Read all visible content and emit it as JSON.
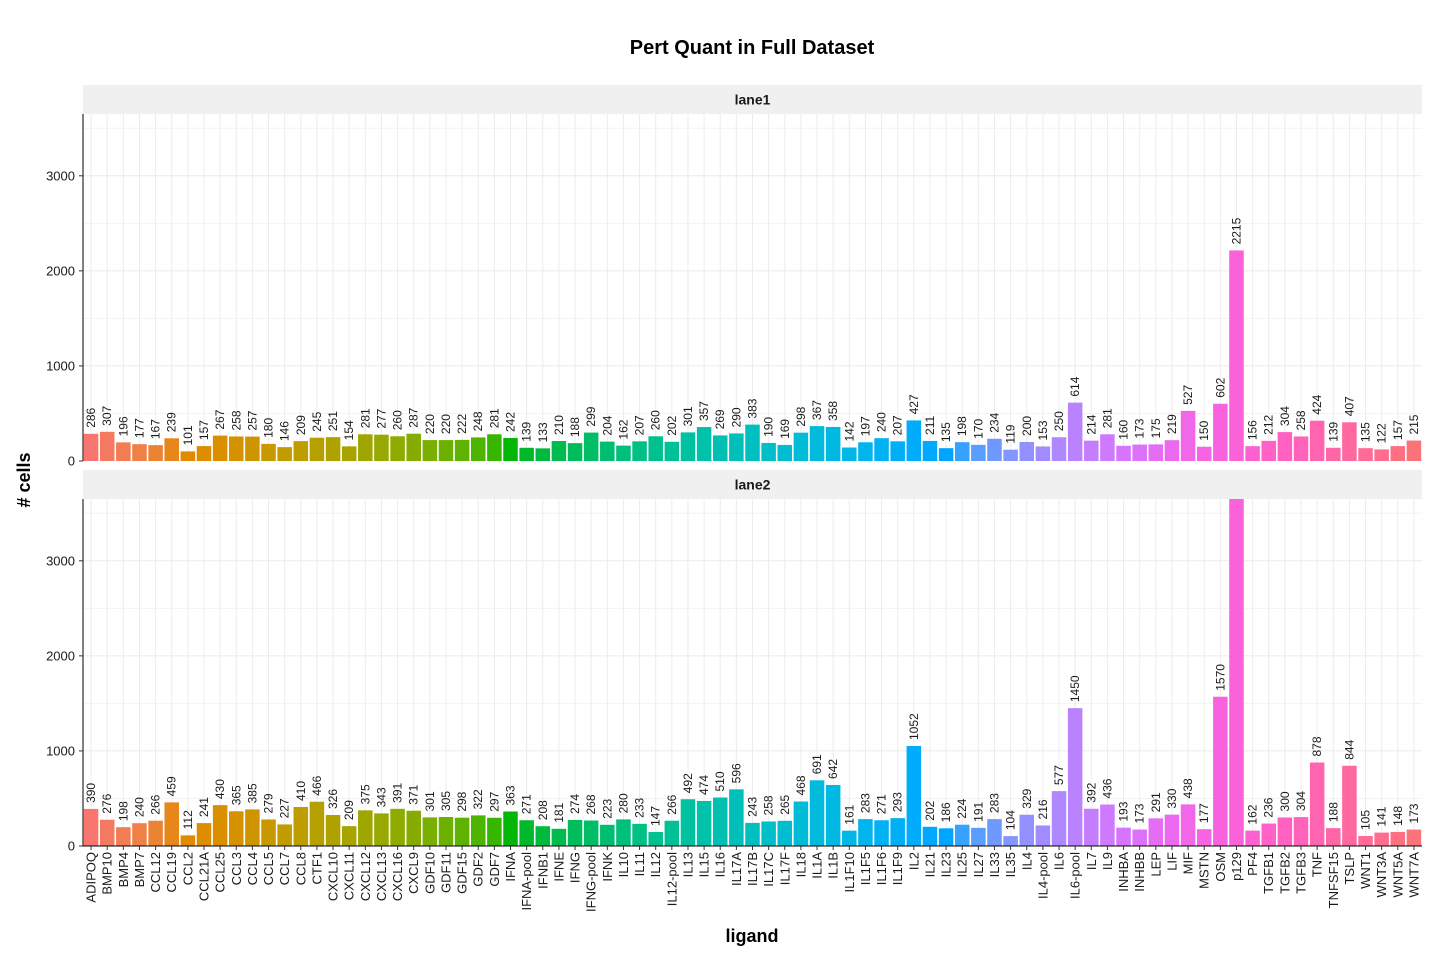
{
  "chart_data": {
    "type": "bar",
    "title": "Pert Quant in Full Dataset",
    "xlabel": "ligand",
    "ylabel": "# cells",
    "ylim": [
      0,
      3650
    ],
    "yticks": [
      0,
      1000,
      2000,
      3000
    ],
    "grid": true,
    "legend": "none",
    "bar_colors": {
      "scale": "hue",
      "hue_start": 15,
      "chroma": 100,
      "luminance": 65
    },
    "categories": [
      "ADIPOQ",
      "BMP10",
      "BMP4",
      "BMP7",
      "CCL12",
      "CCL19",
      "CCL2",
      "CCL21A",
      "CCL25",
      "CCL3",
      "CCL4",
      "CCL5",
      "CCL7",
      "CCL8",
      "CTF1",
      "CXCL10",
      "CXCL11",
      "CXCL12",
      "CXCL13",
      "CXCL16",
      "CXCL9",
      "GDF10",
      "GDF11",
      "GDF15",
      "GDF2",
      "GDF7",
      "IFNA",
      "IFNA-pool",
      "IFNB1",
      "IFNE",
      "IFNG",
      "IFNG-pool",
      "IFNK",
      "IL10",
      "IL11",
      "IL12",
      "IL12-pool",
      "IL13",
      "IL15",
      "IL16",
      "IL17A",
      "IL17B",
      "IL17C",
      "IL17F",
      "IL18",
      "IL1A",
      "IL1B",
      "IL1F10",
      "IL1F5",
      "IL1F6",
      "IL1F9",
      "IL2",
      "IL21",
      "IL23",
      "IL25",
      "IL27",
      "IL33",
      "IL35",
      "IL4",
      "IL4-pool",
      "IL6",
      "IL6-pool",
      "IL7",
      "IL9",
      "INHBA",
      "INHBB",
      "LEP",
      "LIF",
      "MIF",
      "MSTN",
      "OSM",
      "p129",
      "PF4",
      "TGFB1",
      "TGFB2",
      "TGFB3",
      "TNF",
      "TNFSF15",
      "TSLP",
      "WNT1",
      "WNT3A",
      "WNT5A",
      "WNT7A"
    ],
    "facets": [
      {
        "label": "lane1",
        "values": [
          286,
          307,
          196,
          177,
          167,
          239,
          101,
          157,
          267,
          258,
          257,
          180,
          146,
          209,
          245,
          251,
          154,
          281,
          277,
          260,
          287,
          220,
          220,
          222,
          248,
          281,
          242,
          139,
          133,
          210,
          188,
          299,
          204,
          162,
          207,
          260,
          202,
          301,
          357,
          269,
          290,
          383,
          190,
          169,
          298,
          367,
          358,
          142,
          197,
          240,
          207,
          427,
          211,
          135,
          198,
          170,
          234,
          119,
          200,
          153,
          250,
          614,
          214,
          281,
          160,
          173,
          175,
          219,
          527,
          150,
          602,
          2215,
          156,
          212,
          304,
          258,
          424,
          139,
          407,
          135,
          122,
          157,
          215
        ]
      },
      {
        "label": "lane2",
        "values": [
          390,
          276,
          198,
          240,
          266,
          459,
          112,
          241,
          430,
          365,
          385,
          279,
          227,
          410,
          466,
          326,
          209,
          375,
          343,
          391,
          371,
          301,
          305,
          298,
          322,
          297,
          363,
          271,
          208,
          181,
          274,
          268,
          223,
          280,
          233,
          147,
          266,
          492,
          474,
          510,
          596,
          243,
          258,
          265,
          468,
          691,
          642,
          161,
          283,
          271,
          293,
          1052,
          202,
          186,
          224,
          191,
          283,
          104,
          329,
          216,
          577,
          1450,
          392,
          436,
          193,
          173,
          291,
          330,
          438,
          177,
          1570,
          3650,
          162,
          236,
          300,
          304,
          878,
          188,
          844,
          105,
          141,
          148,
          173
        ]
      }
    ]
  }
}
